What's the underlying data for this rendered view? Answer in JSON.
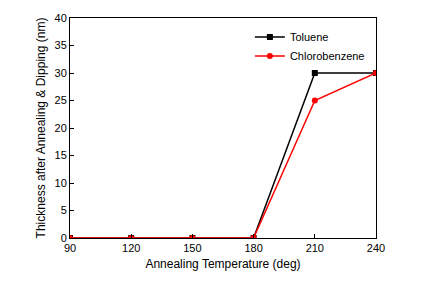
{
  "chart_data": {
    "type": "line",
    "x_label": "Annealing Temperature (deg)",
    "y_label": "Thickness after Annealing & Dipping (nm)",
    "x": [
      90,
      120,
      150,
      180,
      210,
      240
    ],
    "series": [
      {
        "name": "Toluene",
        "color": "#000000",
        "marker": "square",
        "values": [
          0,
          0,
          0,
          0,
          30,
          30
        ]
      },
      {
        "name": "Chlorobenzene",
        "color": "#ff0000",
        "marker": "circle",
        "values": [
          0,
          0,
          0,
          0,
          25,
          30
        ]
      }
    ],
    "xlim": [
      90,
      240
    ],
    "xticks": [
      90,
      120,
      150,
      180,
      210,
      240
    ],
    "ylim": [
      0,
      40
    ],
    "yticks": [
      0,
      5,
      10,
      15,
      20,
      25,
      30,
      35,
      40
    ],
    "grid": false,
    "legend": "top right"
  }
}
